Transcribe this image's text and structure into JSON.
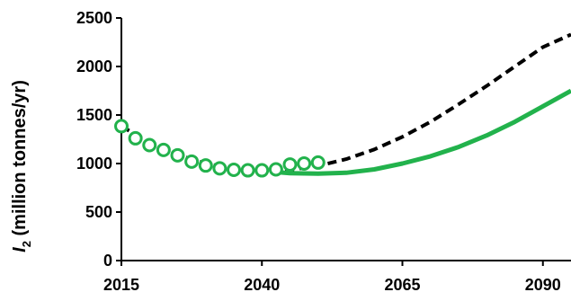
{
  "chart_data": {
    "type": "line",
    "title": "",
    "xlabel": "",
    "ylabel": {
      "symbol": "I",
      "subscript": "2",
      "unit": " (million tonnes/yr)"
    },
    "xlim": [
      2015,
      2095
    ],
    "ylim": [
      0,
      2500
    ],
    "x_ticks": [
      2015,
      2040,
      2065,
      2090
    ],
    "y_ticks": [
      0,
      500,
      1000,
      1500,
      2000,
      2500
    ],
    "grid": false,
    "legend": "none",
    "series": [
      {
        "style": "markers",
        "color": "#22b24c",
        "x": [
          2015,
          2017.5,
          2020,
          2022.5,
          2025,
          2027.5,
          2030,
          2032.5,
          2035,
          2037.5,
          2040,
          2042.5,
          2045,
          2047.5,
          2050
        ],
        "y": [
          1385,
          1260,
          1190,
          1140,
          1085,
          1020,
          980,
          950,
          935,
          930,
          930,
          940,
          990,
          1000,
          1010
        ]
      },
      {
        "style": "dashed",
        "color": "#000000",
        "x": [
          2015,
          2020,
          2025,
          2030,
          2035,
          2040,
          2045,
          2050,
          2055,
          2060,
          2065,
          2070,
          2075,
          2080,
          2085,
          2090,
          2095
        ],
        "y": [
          1385,
          1215,
          1090,
          1000,
          945,
          925,
          935,
          975,
          1045,
          1145,
          1275,
          1430,
          1610,
          1800,
          2000,
          2200,
          2330
        ]
      },
      {
        "style": "solid",
        "color": "#22b24c",
        "x": [
          2043,
          2045,
          2050,
          2055,
          2060,
          2065,
          2070,
          2075,
          2080,
          2085,
          2090,
          2095
        ],
        "y": [
          910,
          900,
          895,
          905,
          940,
          1000,
          1075,
          1170,
          1290,
          1430,
          1590,
          1750
        ]
      }
    ]
  }
}
